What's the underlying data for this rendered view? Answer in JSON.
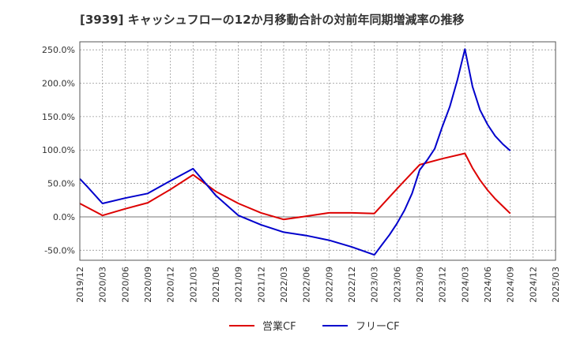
{
  "chart_data": {
    "type": "line",
    "title": "[3939]  キャッシュフローの12か月移動合計の対前年同期増減率の推移",
    "xlabel": "",
    "ylabel": "",
    "ylim": [
      -65,
      262
    ],
    "yticks": [
      -50,
      0,
      50,
      100,
      150,
      200,
      250
    ],
    "ytick_labels": [
      "-50.0%",
      "0.0%",
      "50.0%",
      "100.0%",
      "150.0%",
      "200.0%",
      "250.0%"
    ],
    "x_labels": [
      "2019/12",
      "2020/03",
      "2020/06",
      "2020/09",
      "2020/12",
      "2021/03",
      "2021/06",
      "2021/09",
      "2021/12",
      "2022/03",
      "2022/06",
      "2022/09",
      "2022/12",
      "2023/03",
      "2023/06",
      "2023/09",
      "2023/12",
      "2024/03",
      "2024/06",
      "2024/09",
      "2024/12",
      "2025/03"
    ],
    "grid": true,
    "legend_position": "bottom-center",
    "series": [
      {
        "name": "営業CF",
        "color": "#dd0000",
        "points": [
          [
            "2019/12",
            20
          ],
          [
            "2020/03",
            2
          ],
          [
            "2020/06",
            12
          ],
          [
            "2020/09",
            21
          ],
          [
            "2020/12",
            41
          ],
          [
            "2021/03",
            63
          ],
          [
            "2021/06",
            38
          ],
          [
            "2021/09",
            20
          ],
          [
            "2021/12",
            6
          ],
          [
            "2022/03",
            -4
          ],
          [
            "2022/06",
            1
          ],
          [
            "2022/09",
            6
          ],
          [
            "2022/12",
            6
          ],
          [
            "2023/03",
            5
          ],
          [
            "2023/06",
            42
          ],
          [
            "2023/09",
            78
          ],
          [
            "2023/12",
            87
          ],
          [
            "2024/03",
            95
          ],
          [
            "2024/04",
            73
          ],
          [
            "2024/05",
            55
          ],
          [
            "2024/06",
            40
          ],
          [
            "2024/07",
            27
          ],
          [
            "2024/08",
            16
          ],
          [
            "2024/09",
            5
          ]
        ]
      },
      {
        "name": "フリーCF",
        "color": "#0000cc",
        "points": [
          [
            "2019/12",
            57
          ],
          [
            "2020/01",
            45
          ],
          [
            "2020/03",
            20
          ],
          [
            "2020/06",
            28
          ],
          [
            "2020/09",
            35
          ],
          [
            "2020/12",
            54
          ],
          [
            "2021/03",
            72
          ],
          [
            "2021/06",
            32
          ],
          [
            "2021/09",
            2
          ],
          [
            "2021/12",
            -12
          ],
          [
            "2022/03",
            -23
          ],
          [
            "2022/06",
            -28
          ],
          [
            "2022/09",
            -35
          ],
          [
            "2022/12",
            -45
          ],
          [
            "2023/03",
            -57
          ],
          [
            "2023/04",
            -42
          ],
          [
            "2023/05",
            -27
          ],
          [
            "2023/06",
            -10
          ],
          [
            "2023/07",
            10
          ],
          [
            "2023/08",
            35
          ],
          [
            "2023/09",
            70
          ],
          [
            "2023/10",
            85
          ],
          [
            "2023/11",
            102
          ],
          [
            "2023/12",
            135
          ],
          [
            "2024/01",
            165
          ],
          [
            "2024/02",
            205
          ],
          [
            "2024/03",
            251
          ],
          [
            "2024/04",
            195
          ],
          [
            "2024/05",
            160
          ],
          [
            "2024/06",
            138
          ],
          [
            "2024/07",
            121
          ],
          [
            "2024/08",
            109
          ],
          [
            "2024/09",
            99
          ]
        ]
      }
    ]
  }
}
